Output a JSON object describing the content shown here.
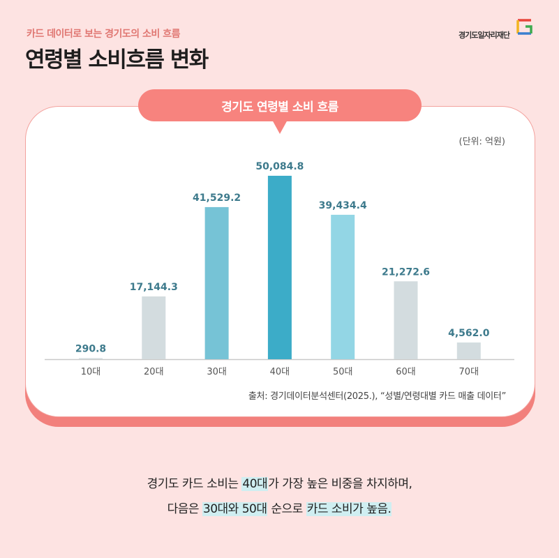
{
  "header": {
    "subtitle": "카드 데이터로 보는 경기도의 소비 흐름",
    "title": "연령별 소비흐름 변화",
    "brand": "경기도일자리재단"
  },
  "card": {
    "pill_label": "경기도 연령별 소비 흐름",
    "unit": "(단위: 억원)",
    "source": "출처: 경기데이터분석센터(2025.), “성별/연령대별 카드 매출 데이터”"
  },
  "chart_data": {
    "type": "bar",
    "title": "경기도 연령별 소비 흐름",
    "ylabel": "억원",
    "categories": [
      "10대",
      "20대",
      "30대",
      "40대",
      "50대",
      "60대",
      "70대"
    ],
    "values": [
      290.8,
      17144.3,
      41529.2,
      50084.8,
      39434.4,
      21272.6,
      4562.0
    ],
    "data_labels": [
      "290.8",
      "17,144.3",
      "41,529.2",
      "50,084.8",
      "39,434.4",
      "21,272.6",
      "4,562.0"
    ],
    "colors": [
      "#d3dcdf",
      "#d3dcdf",
      "#76c3d6",
      "#3cacc8",
      "#93d6e5",
      "#d3dcdf",
      "#d3dcdf"
    ],
    "label_color": "#3d7a8c"
  },
  "summary": {
    "line1_pre": "경기도 카드 소비는 ",
    "line1_hl": "40대",
    "line1_post": "가 가장 높은 비중을 차지하며,",
    "line2_pre": "다음은 ",
    "line2_hl1": "30대와 50대",
    "line2_mid": " 순으로 ",
    "line2_hl2": "카드 소비가 높음."
  }
}
